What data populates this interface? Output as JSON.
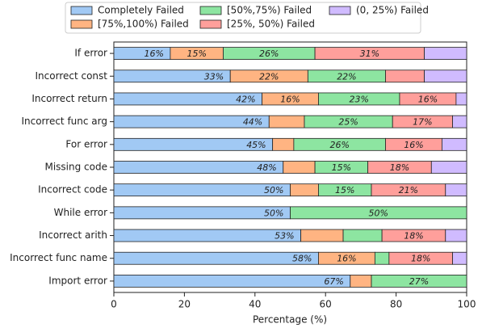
{
  "chart_data": {
    "type": "stacked_barh",
    "categories": [
      "If error",
      "Incorrect const",
      "Incorrect return",
      "Incorrect func arg",
      "For error",
      "Missing code",
      "Incorrect code",
      "While error",
      "Incorrect arith",
      "Incorrect func name",
      "Import error"
    ],
    "series": [
      {
        "name": "Completely Failed",
        "color": "#a1c9f4",
        "values": [
          16,
          33,
          42,
          44,
          45,
          48,
          50,
          50,
          53,
          58,
          67
        ],
        "value_labels": [
          "16%",
          "33%",
          "42%",
          "44%",
          "45%",
          "48%",
          "50%",
          "50%",
          "53%",
          "58%",
          "67%"
        ]
      },
      {
        "name": "[75%,100%) Failed",
        "color": "#ffb482",
        "values": [
          15,
          22,
          16,
          10,
          6,
          9,
          8,
          0,
          12,
          16,
          6
        ],
        "value_labels": [
          "15%",
          "22%",
          "16%",
          null,
          null,
          null,
          null,
          null,
          null,
          "16%",
          null
        ]
      },
      {
        "name": "[50%,75%) Failed",
        "color": "#8de5a1",
        "values": [
          26,
          22,
          23,
          25,
          26,
          15,
          15,
          50,
          11,
          4,
          27
        ],
        "value_labels": [
          "26%",
          "22%",
          "23%",
          "25%",
          "26%",
          "15%",
          "15%",
          "50%",
          null,
          null,
          "27%"
        ]
      },
      {
        "name": "[25%, 50%) Failed",
        "color": "#ff9f9b",
        "values": [
          31,
          11,
          16,
          17,
          16,
          18,
          21,
          0,
          18,
          18,
          0
        ],
        "value_labels": [
          "31%",
          null,
          "16%",
          "17%",
          "16%",
          "18%",
          "21%",
          null,
          "18%",
          "18%",
          null
        ]
      },
      {
        "name": "(0, 25%) Failed",
        "color": "#d0bbff",
        "values": [
          12,
          12,
          3,
          4,
          7,
          10,
          6,
          0,
          6,
          4,
          0
        ],
        "value_labels": [
          null,
          null,
          null,
          null,
          null,
          null,
          null,
          null,
          null,
          null,
          null
        ]
      }
    ],
    "xlabel": "Percentage (%)",
    "xlim": [
      0,
      100
    ],
    "xticks": [
      0,
      20,
      40,
      60,
      80,
      100
    ]
  }
}
